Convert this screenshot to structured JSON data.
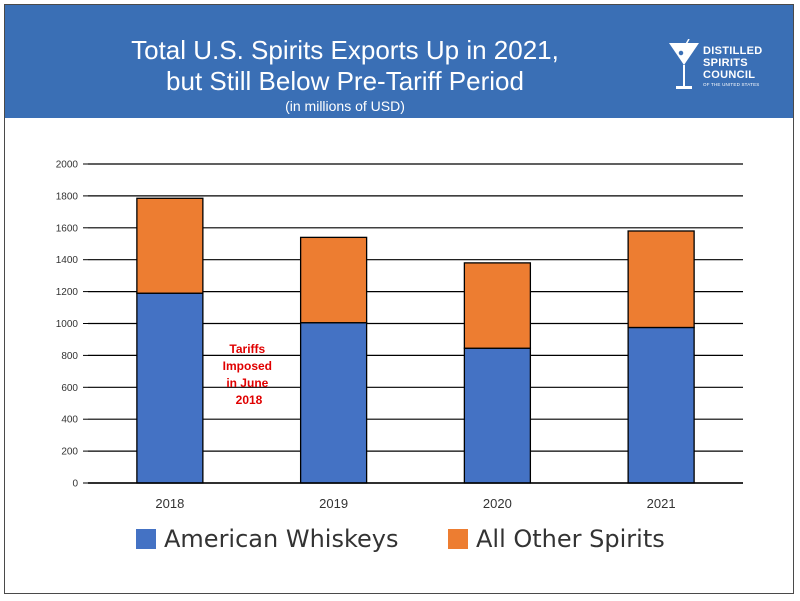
{
  "header": {
    "title_line1": "Total U.S. Spirits Exports Up in 2021,",
    "title_line2": "but Still Below Pre-Tariff Period",
    "subtitle": "(in millions of USD)"
  },
  "logo": {
    "line1": "DISTILLED",
    "line2": "SPIRITS",
    "line3": "COUNCIL",
    "line4": "OF THE UNITED STATES",
    "icon": "martini-glass-icon"
  },
  "colors": {
    "banner": "#3a6fb5",
    "american_whiskeys": "#4472c4",
    "all_other_spirits": "#ed7d31",
    "annotation": "#e00000"
  },
  "chart_data": {
    "type": "bar",
    "stacked": true,
    "categories": [
      "2018",
      "2019",
      "2020",
      "2021"
    ],
    "series": [
      {
        "name": "American Whiskeys",
        "values": [
          1190,
          1005,
          845,
          975
        ]
      },
      {
        "name": "All Other Spirits",
        "values": [
          595,
          535,
          535,
          605
        ]
      }
    ],
    "ylim": [
      0,
      2000
    ],
    "yticks": [
      0,
      200,
      400,
      600,
      800,
      1000,
      1200,
      1400,
      1600,
      1800,
      2000
    ],
    "grid": true,
    "legend": "bottom",
    "annotation": {
      "lines": [
        "Tariffs",
        "Imposed",
        "in June",
        "2018"
      ]
    }
  }
}
